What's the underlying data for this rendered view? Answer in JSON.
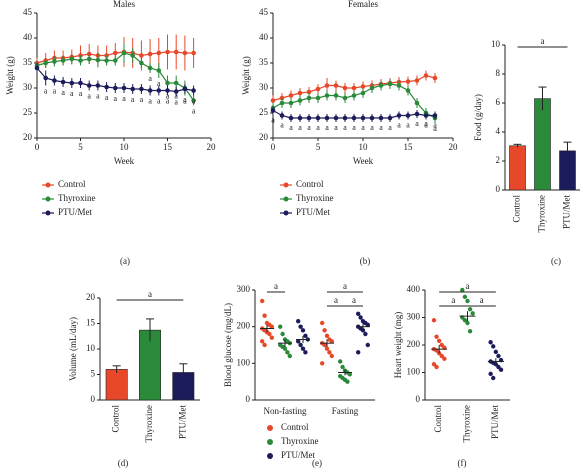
{
  "chart_data": [
    {
      "type": "line",
      "panel_label": "(a)",
      "title": "Males",
      "xlabel": "Week",
      "ylabel": "Weight (g)",
      "x": [
        0,
        1,
        2,
        3,
        4,
        5,
        6,
        7,
        8,
        9,
        10,
        11,
        12,
        13,
        14,
        15,
        16,
        17,
        18
      ],
      "xlim": [
        0,
        20
      ],
      "xticks": [
        0,
        5,
        10,
        15,
        20
      ],
      "ylim": [
        20,
        45
      ],
      "yticks": [
        20,
        25,
        30,
        35,
        40,
        45
      ],
      "series": [
        {
          "name": "Control",
          "color": "#e8482a",
          "values": [
            35,
            35.5,
            36,
            36,
            36.2,
            36.5,
            36.8,
            36.5,
            36.5,
            37,
            37.2,
            37,
            36.5,
            36.8,
            37,
            37.2,
            37.2,
            37,
            37
          ],
          "errors": [
            1,
            1.5,
            1.5,
            1.5,
            1.5,
            2,
            2,
            2,
            2,
            2,
            3,
            3,
            3,
            3,
            3,
            3.5,
            3.5,
            3.5,
            3
          ],
          "annotations": [
            null,
            null,
            null,
            null,
            null,
            null,
            null,
            null,
            null,
            null,
            null,
            null,
            null,
            null,
            null,
            null,
            null,
            null,
            null
          ]
        },
        {
          "name": "Thyroxine",
          "color": "#2a8a3a",
          "values": [
            34.5,
            35,
            35.3,
            35.5,
            35.8,
            35.5,
            35.8,
            35.6,
            35.5,
            35.5,
            37,
            36.5,
            35,
            34,
            33.5,
            31,
            31,
            30,
            27.5
          ],
          "errors": [
            1,
            1,
            1,
            1,
            1,
            1,
            1,
            1.5,
            1,
            1,
            2,
            1.5,
            1,
            1,
            1.5,
            1.5,
            1.5,
            1.5,
            1
          ],
          "annotations": [
            null,
            null,
            null,
            null,
            null,
            null,
            null,
            null,
            null,
            null,
            null,
            null,
            null,
            "a",
            "a",
            "a",
            "a",
            "a",
            "a"
          ]
        },
        {
          "name": "PTU/Met",
          "color": "#1c1c5c",
          "values": [
            34,
            32,
            31.5,
            31.2,
            31,
            31,
            30.5,
            30.5,
            30.2,
            30,
            30,
            29.8,
            29.8,
            29.5,
            29.5,
            29.5,
            29.3,
            29.8,
            29.5
          ],
          "errors": [
            1,
            1.5,
            1,
            1,
            1,
            1,
            1,
            1,
            1,
            1,
            1,
            1,
            1,
            1,
            1,
            1,
            1,
            1,
            1
          ],
          "annotations": [
            null,
            "a",
            "a",
            "a",
            "a",
            "a",
            "a",
            "a",
            "a",
            "a",
            "a",
            "a",
            "a",
            "a",
            "a",
            "a",
            "a",
            "a",
            "a"
          ]
        }
      ]
    },
    {
      "type": "line",
      "panel_label": "(b)",
      "title": "Females",
      "xlabel": "Week",
      "ylabel": "Weight (g)",
      "x": [
        0,
        1,
        2,
        3,
        4,
        5,
        6,
        7,
        8,
        9,
        10,
        11,
        12,
        13,
        14,
        15,
        16,
        17,
        18
      ],
      "xlim": [
        0,
        20
      ],
      "xticks": [
        0,
        5,
        10,
        15,
        20
      ],
      "ylim": [
        20,
        45
      ],
      "yticks": [
        20,
        25,
        30,
        35,
        40,
        45
      ],
      "series": [
        {
          "name": "Control",
          "color": "#e8482a",
          "values": [
            27.5,
            28,
            28.5,
            29,
            29.2,
            29.8,
            30.5,
            30.5,
            30,
            30,
            30.3,
            30.5,
            30.8,
            31,
            31.2,
            31.3,
            31.5,
            32.5,
            32
          ],
          "errors": [
            1,
            1,
            1,
            1,
            1,
            1,
            1.5,
            1,
            1,
            1,
            1,
            1,
            1,
            1,
            1,
            1,
            1,
            1,
            1
          ],
          "annotations": [
            null,
            null,
            null,
            null,
            null,
            null,
            null,
            null,
            null,
            null,
            null,
            null,
            null,
            null,
            null,
            null,
            null,
            null,
            null
          ]
        },
        {
          "name": "Thyroxine",
          "color": "#2a8a3a",
          "values": [
            26,
            27,
            27,
            27.5,
            28,
            28,
            28.5,
            28.5,
            28,
            28.5,
            29,
            30,
            30.5,
            30.8,
            30.5,
            29.5,
            27,
            25,
            24
          ],
          "errors": [
            1,
            1,
            1,
            1,
            1,
            1,
            1,
            1,
            1,
            1,
            1,
            1,
            1,
            1,
            1,
            1,
            1,
            1,
            1
          ],
          "annotations": [
            null,
            null,
            null,
            null,
            null,
            null,
            null,
            null,
            null,
            null,
            null,
            null,
            null,
            null,
            null,
            null,
            "a",
            "a",
            "a"
          ]
        },
        {
          "name": "PTU/Met",
          "color": "#1c1c5c",
          "values": [
            25.5,
            24.5,
            24,
            24,
            24,
            24,
            24,
            24,
            24,
            24,
            24,
            24,
            24,
            24,
            24.5,
            24.5,
            24.8,
            24.5,
            24.5
          ],
          "errors": [
            0.8,
            0.8,
            0.8,
            0.8,
            0.8,
            0.8,
            0.8,
            0.8,
            0.8,
            0.8,
            0.8,
            0.8,
            0.8,
            0.8,
            0.8,
            0.8,
            0.8,
            0.8,
            0.8
          ],
          "annotations": [
            "a",
            "a",
            "a",
            "a",
            "a",
            "a",
            "a",
            "a",
            "a",
            "a",
            "a",
            "a",
            "a",
            "a",
            "a",
            "a",
            "a",
            "a",
            "a"
          ]
        }
      ]
    },
    {
      "type": "bar",
      "panel_label": "(c)",
      "ylabel": "Food (g/day)",
      "categories": [
        "Control",
        "Thyroxine",
        "PTU/Met"
      ],
      "values": [
        3.05,
        6.3,
        2.7
      ],
      "errors": [
        0.1,
        0.8,
        0.6
      ],
      "colors": [
        "#e8482a",
        "#2a8a3a",
        "#1c1c5c"
      ],
      "ylim": [
        0,
        10
      ],
      "yticks": [
        0,
        2,
        4,
        6,
        8,
        10
      ],
      "brackets": [
        {
          "between": [
            "Control",
            "PTU/Met"
          ],
          "label": "a"
        }
      ]
    },
    {
      "type": "bar",
      "panel_label": "(d)",
      "ylabel": "Volume (mL/day)",
      "categories": [
        "Control",
        "Thyroxine",
        "PTU/Met"
      ],
      "values": [
        6,
        13.7,
        5.4
      ],
      "errors": [
        0.7,
        2.2,
        1.7
      ],
      "colors": [
        "#e8482a",
        "#2a8a3a",
        "#1c1c5c"
      ],
      "ylim": [
        0,
        20
      ],
      "yticks": [
        0,
        5,
        10,
        15,
        20
      ],
      "brackets": [
        {
          "between": [
            "Control",
            "PTU/Met"
          ],
          "label": "a"
        }
      ]
    },
    {
      "type": "dotgroup",
      "panel_label": "(e)",
      "ylabel": "Blood glucose (mg/dL)",
      "categories": [
        "Non-fasting",
        "Fasting"
      ],
      "ylim": [
        0,
        300
      ],
      "yticks": [
        0,
        100,
        200,
        300
      ],
      "series": [
        {
          "name": "Control",
          "color": "#e8482a",
          "points": [
            [
              270,
              230,
              210,
              205,
              200,
              195,
              190,
              185,
              180,
              170,
              160,
              150
            ],
            [
              210,
              190,
              175,
              165,
              160,
              155,
              150,
              140,
              130,
              120,
              100
            ]
          ],
          "means": [
            195,
            155
          ],
          "errors": [
            10,
            10
          ]
        },
        {
          "name": "Thyroxine",
          "color": "#2a8a3a",
          "points": [
            [
              200,
              180,
              165,
              160,
              155,
              150,
              145,
              140,
              130,
              120
            ],
            [
              105,
              90,
              80,
              75,
              70,
              65,
              60,
              55,
              50
            ]
          ],
          "means": [
            155,
            75
          ],
          "errors": [
            10,
            8
          ]
        },
        {
          "name": "PTU/Met",
          "color": "#1c1c5c",
          "points": [
            [
              215,
              200,
              190,
              175,
              165,
              160,
              150,
              140,
              130
            ],
            [
              235,
              225,
              215,
              210,
              205,
              200,
              195,
              190,
              180,
              150,
              130
            ]
          ],
          "means": [
            165,
            200
          ],
          "errors": [
            10,
            10
          ]
        }
      ],
      "brackets": [
        {
          "group": "Non-fasting",
          "between": [
            "Control",
            "Thyroxine"
          ],
          "label": "a"
        },
        {
          "group": "Fasting",
          "between": [
            "Control",
            "PTU/Met"
          ],
          "label": "a"
        },
        {
          "group": "Fasting",
          "between": [
            "Control",
            "Thyroxine"
          ],
          "label": "a"
        },
        {
          "group": "Fasting",
          "between": [
            "Thyroxine",
            "PTU/Met"
          ],
          "label": "a"
        }
      ]
    },
    {
      "type": "strip",
      "panel_label": "(f)",
      "ylabel": "Heart weight (mg)",
      "categories": [
        "Control",
        "Thyroxine",
        "PTU/Met"
      ],
      "colors": [
        "#e8482a",
        "#2a8a3a",
        "#1c1c5c"
      ],
      "points": [
        [
          290,
          230,
          215,
          200,
          190,
          185,
          180,
          170,
          160,
          150,
          130,
          120
        ],
        [
          400,
          375,
          360,
          330,
          315,
          300,
          290,
          280,
          250
        ],
        [
          210,
          195,
          175,
          160,
          145,
          140,
          135,
          130,
          120,
          110,
          95,
          80
        ]
      ],
      "means": [
        185,
        305,
        140
      ],
      "errors": [
        15,
        18,
        12
      ],
      "ylim": [
        0,
        400
      ],
      "yticks": [
        0,
        100,
        200,
        300,
        400
      ],
      "brackets": [
        {
          "between": [
            "Control",
            "PTU/Met"
          ],
          "label": "a"
        },
        {
          "between": [
            "Control",
            "Thyroxine"
          ],
          "label": "a"
        },
        {
          "between": [
            "Thyroxine",
            "PTU/Met"
          ],
          "label": "a"
        }
      ]
    }
  ]
}
